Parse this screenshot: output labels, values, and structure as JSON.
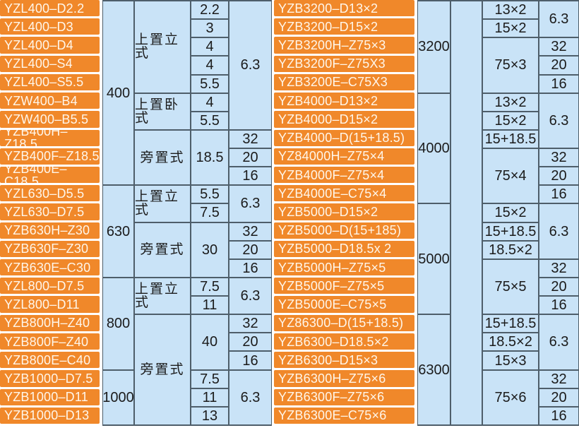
{
  "colors": {
    "model_cell_bg": "#F0882A",
    "model_text": "#FFF6EA",
    "value_cell_bg": "#C9E3F7",
    "value_text": "#1B1B1B",
    "grid_line": "#4E5E6A",
    "background": "#FFFFFF"
  },
  "table_left": {
    "models": [
      "YZL400–D2.2",
      "YZL400–D3",
      "YZL400–D4",
      "YZL400–S4",
      "YZL400–S5.5",
      "YZW400–B4",
      "YZW400–B5.5",
      "YZB400H–Z18.5",
      "YZB400F–Z18.5",
      "YZB400E–C18.5",
      "YZL630–D5.5",
      "YZL630–D7.5",
      "YZB630H–Z30",
      "YZB630F–Z30",
      "YZB630E–C30",
      "YZL800–D7.5",
      "YZL800–D11",
      "YZB800H–Z40",
      "YZB800F–Z40",
      "YZB800E–C40",
      "YZB1000–D7.5",
      "YZB1000–D11",
      "YZB1000–D13"
    ],
    "capacity": [
      {
        "label": "400",
        "row": 1,
        "span": 10
      },
      {
        "label": "630",
        "row": 11,
        "span": 5
      },
      {
        "label": "800",
        "row": 16,
        "span": 5
      },
      {
        "label": "1000",
        "row": 21,
        "span": 3
      }
    ],
    "mounting": [
      {
        "label": "上置立式",
        "row": 1,
        "span": 5
      },
      {
        "label": "上置卧式",
        "row": 6,
        "span": 2
      },
      {
        "label": "旁置式",
        "row": 8,
        "span": 3
      },
      {
        "label": "上置立式",
        "row": 11,
        "span": 2
      },
      {
        "label": "旁置式",
        "row": 13,
        "span": 3
      },
      {
        "label": "上置立式",
        "row": 16,
        "span": 2
      },
      {
        "label": "旁置式",
        "row": 18,
        "span": 6
      }
    ],
    "power": [
      {
        "label": "2.2",
        "row": 1
      },
      {
        "label": "3",
        "row": 2
      },
      {
        "label": "4",
        "row": 3
      },
      {
        "label": "4",
        "row": 4
      },
      {
        "label": "5.5",
        "row": 5
      },
      {
        "label": "4",
        "row": 6
      },
      {
        "label": "5.5",
        "row": 7
      },
      {
        "label": "18.5",
        "row": 8,
        "span": 3
      },
      {
        "label": "5.5",
        "row": 11
      },
      {
        "label": "7.5",
        "row": 12
      },
      {
        "label": "30",
        "row": 13,
        "span": 3
      },
      {
        "label": "7.5",
        "row": 16
      },
      {
        "label": "11",
        "row": 17
      },
      {
        "label": "40",
        "row": 18,
        "span": 3
      },
      {
        "label": "7.5",
        "row": 21
      },
      {
        "label": "11",
        "row": 22
      },
      {
        "label": "13",
        "row": 23
      }
    ],
    "pressure": [
      {
        "label": "6.3",
        "row": 1,
        "span": 7
      },
      {
        "label": "32",
        "row": 8
      },
      {
        "label": "20",
        "row": 9
      },
      {
        "label": "16",
        "row": 10
      },
      {
        "label": "6.3",
        "row": 11,
        "span": 2
      },
      {
        "label": "32",
        "row": 13
      },
      {
        "label": "20",
        "row": 14
      },
      {
        "label": "16",
        "row": 15
      },
      {
        "label": "6.3",
        "row": 16,
        "span": 2
      },
      {
        "label": "32",
        "row": 18
      },
      {
        "label": "20",
        "row": 19
      },
      {
        "label": "16",
        "row": 20
      },
      {
        "label": "6.3",
        "row": 21,
        "span": 3
      }
    ]
  },
  "table_right": {
    "models": [
      "YZB3200–D13×2",
      "YZB3200–D15×2",
      "YZB3200H–Z75×3",
      "YZB3200F–Z75X3",
      "YZB3200E–C75X3",
      "YZB4000–D13×2",
      "YZB4000–D15×2",
      "YZB4000–D(15+18.5)",
      "YZ84000H–Z75×4",
      "YZB4000F–Z75×4",
      "YZB4000E–C75×4",
      "YZB5000–D15×2",
      "YZB5000–D(15+185)",
      "YZB5000–D18.5x 2",
      "YZB5000H–Z75×5",
      "YZB5000F–Z75×5",
      "YZB5000E–C75×5",
      "YZ86300–D(15+18.5)",
      "YZB6300–D18.5×2",
      "YZB6300–D15×3",
      "YZB6300H–Z75×6",
      "YZB6300F–Z75×6",
      "YZB6300E–C75×6"
    ],
    "capacity": [
      {
        "label": "3200",
        "row": 1,
        "span": 5
      },
      {
        "label": "4000",
        "row": 6,
        "span": 6
      },
      {
        "label": "5000",
        "row": 12,
        "span": 6
      },
      {
        "label": "6300",
        "row": 18,
        "span": 6
      }
    ],
    "spacer": [
      {
        "label": "",
        "row": 1,
        "span": 23
      }
    ],
    "power": [
      {
        "label": "13×2",
        "row": 1
      },
      {
        "label": "15×2",
        "row": 2
      },
      {
        "label": "75×3",
        "row": 3,
        "span": 3
      },
      {
        "label": "13×2",
        "row": 6
      },
      {
        "label": "15×2",
        "row": 7
      },
      {
        "label": "15+18.5",
        "row": 8
      },
      {
        "label": "75×4",
        "row": 9,
        "span": 3
      },
      {
        "label": "15×2",
        "row": 12
      },
      {
        "label": "15+18.5",
        "row": 13
      },
      {
        "label": "18.5×2",
        "row": 14
      },
      {
        "label": "75×5",
        "row": 15,
        "span": 3
      },
      {
        "label": "15+18.5",
        "row": 18
      },
      {
        "label": "18.5×2",
        "row": 19
      },
      {
        "label": "15×3",
        "row": 20
      },
      {
        "label": "75×6",
        "row": 21,
        "span": 3
      }
    ],
    "pressure": [
      {
        "label": "6.3",
        "row": 1,
        "span": 2
      },
      {
        "label": "32",
        "row": 3
      },
      {
        "label": "20",
        "row": 4
      },
      {
        "label": "16",
        "row": 5
      },
      {
        "label": "6.3",
        "row": 6,
        "span": 3
      },
      {
        "label": "32",
        "row": 9
      },
      {
        "label": "20",
        "row": 10
      },
      {
        "label": "16",
        "row": 11
      },
      {
        "label": "6.3",
        "row": 12,
        "span": 3
      },
      {
        "label": "32",
        "row": 15
      },
      {
        "label": "20",
        "row": 16
      },
      {
        "label": "16",
        "row": 17
      },
      {
        "label": "6.3",
        "row": 18,
        "span": 3
      },
      {
        "label": "32",
        "row": 21
      },
      {
        "label": "20",
        "row": 22
      },
      {
        "label": "16",
        "row": 23
      }
    ]
  }
}
